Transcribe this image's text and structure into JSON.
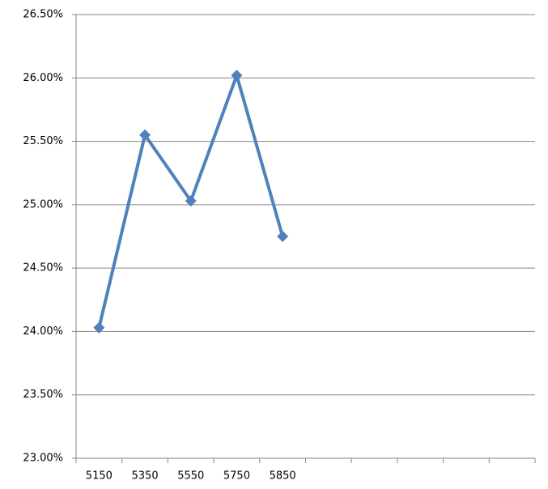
{
  "chart_data": {
    "type": "line",
    "categories": [
      "5150",
      "5350",
      "5550",
      "5750",
      "5850",
      null,
      null,
      null,
      null,
      null
    ],
    "series": [
      {
        "color": "#4f81bd",
        "values": [
          24.03,
          25.55,
          25.03,
          26.02,
          24.75,
          null,
          null,
          null,
          null,
          null
        ]
      }
    ],
    "ylim": [
      23,
      26.5
    ],
    "yticks": [
      {
        "value": 23,
        "label": "23.00%"
      },
      {
        "value": 23.5,
        "label": "23.50%"
      },
      {
        "value": 24,
        "label": "24.00%"
      },
      {
        "value": 24.5,
        "label": "24.50%"
      },
      {
        "value": 25,
        "label": "25.00%"
      },
      {
        "value": 25.5,
        "label": "25.50%"
      },
      {
        "value": 26,
        "label": "26.00%"
      },
      {
        "value": 26.5,
        "label": "26.50%"
      }
    ],
    "grid": true
  }
}
